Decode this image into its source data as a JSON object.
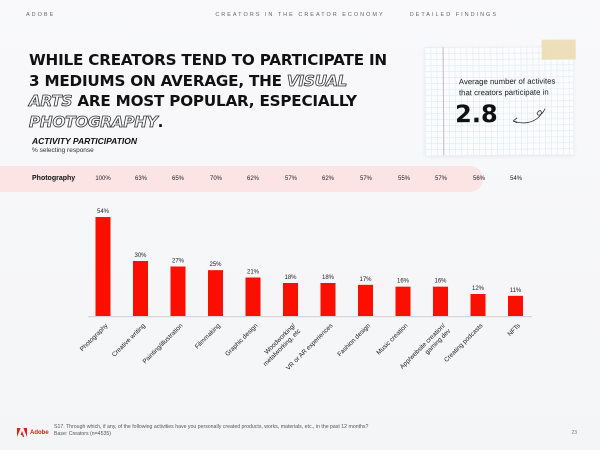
{
  "header": {
    "brand": "ADOBE",
    "report_title": "CREATORS IN THE CREATOR ECONOMY",
    "section": "DETAILED FINDINGS"
  },
  "headline": {
    "part1": "WHILE CREATORS TEND TO PARTICIPATE IN 3 MEDIUMS ON AVERAGE, THE ",
    "highlight1": "VISUAL ARTS",
    "part2": " ARE MOST POPULAR, ESPECIALLY ",
    "highlight2": "PHOTOGRAPHY",
    "part3": "."
  },
  "callout": {
    "text": "Average number of activites that creators participate in",
    "value": "2.8",
    "icon": "curly-arrow-icon"
  },
  "chart_section": {
    "title": "ACTIVITY PARTICIPATION",
    "subtitle": "% selecting response"
  },
  "photography_row": {
    "label": "Photography",
    "values": [
      "100%",
      "63%",
      "65%",
      "70%",
      "62%",
      "57%",
      "62%",
      "57%",
      "55%",
      "57%",
      "56%",
      "54%"
    ]
  },
  "chart_data": {
    "type": "bar",
    "title": "ACTIVITY PARTICIPATION",
    "subtitle": "% selecting response",
    "xlabel": "",
    "ylabel": "% selecting response",
    "ylim": [
      0,
      60
    ],
    "grid": false,
    "legend": "none",
    "bar_color": "#fa0f00",
    "categories": [
      "Photography",
      "Creative writing",
      "Painting/illustration",
      "Filmmaking",
      "Graphic design",
      "Woodworking/ metalworking, etc",
      "VR or AR experiences",
      "Fashion design",
      "Music creation",
      "App/website creation/ gaming dev",
      "Creating podcasts",
      "NFTs"
    ],
    "values": [
      54,
      30,
      27,
      25,
      21,
      18,
      18,
      17,
      16,
      16,
      12,
      11
    ],
    "data_labels": [
      "54%",
      "30%",
      "27%",
      "25%",
      "21%",
      "18%",
      "18%",
      "17%",
      "16%",
      "16%",
      "12%",
      "11%"
    ]
  },
  "footer": {
    "logo_text": "Adobe",
    "question": "S17. Through which, if any, of the following activities have you personally created products, works, materials, etc., in the past 12 months?",
    "base": "Base: Creators (n=4535)",
    "page_number": "23"
  }
}
